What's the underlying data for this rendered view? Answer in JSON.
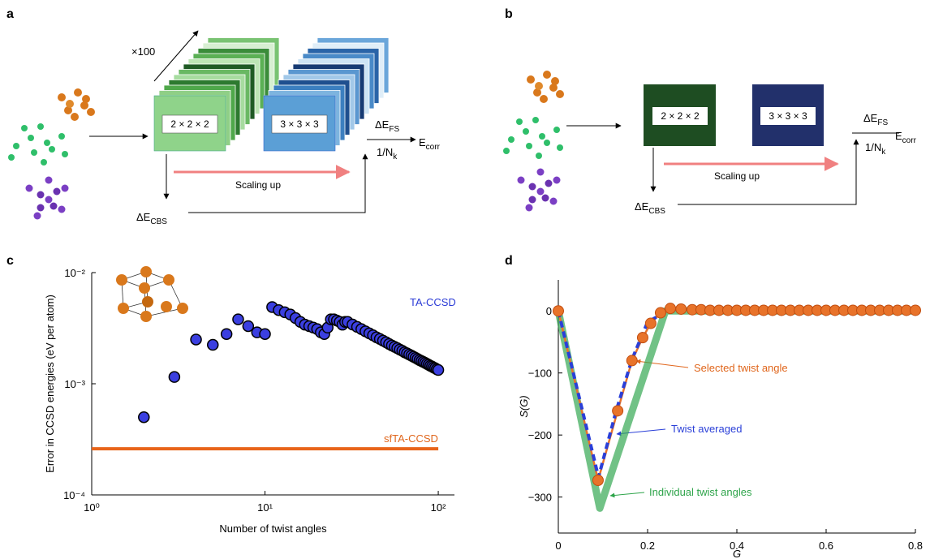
{
  "diagrams": [
    {
      "label": "a",
      "multiplier": "×100",
      "cells": [
        "2 × 2 × 2",
        "3 × 3 × 3"
      ],
      "arrow_label": "Scaling up",
      "cbs": {
        "main": "ΔE",
        "sub": "CBS"
      },
      "fs": {
        "main": "ΔE",
        "sub": "FS"
      },
      "nk": {
        "main": "1/N",
        "sub": "k"
      },
      "result": {
        "main": "E",
        "sub": "corr"
      }
    },
    {
      "label": "b",
      "cells": [
        "2 × 2 × 2",
        "3 × 3 × 3"
      ],
      "arrow_label": "Scaling up",
      "cbs": {
        "main": "ΔE",
        "sub": "CBS"
      },
      "fs": {
        "main": "ΔE",
        "sub": "FS"
      },
      "nk": {
        "main": "1/N",
        "sub": "k"
      },
      "result": {
        "main": "E",
        "sub": "corr"
      }
    }
  ],
  "chart_data": [
    {
      "type": "scatter",
      "panel": "c",
      "xlabel": "Number of twist angles",
      "ylabel": "Error in CCSD energies (eV per atom)",
      "xscale": "log",
      "yscale": "log",
      "xlim": [
        1,
        124
      ],
      "ylim": [
        0.0001,
        0.01
      ],
      "xticks": [
        {
          "value": 1,
          "label": "10⁰"
        },
        {
          "value": 10,
          "label": "10¹"
        },
        {
          "value": 100,
          "label": "10²"
        }
      ],
      "yticks": [
        {
          "value": 0.0001,
          "label": "10⁻⁴"
        },
        {
          "value": 0.001,
          "label": "10⁻³"
        },
        {
          "value": 0.01,
          "label": "10⁻²"
        }
      ],
      "series": [
        {
          "name": "TA-CCSD",
          "style": "markers",
          "color": "#3b3fe0",
          "x": [
            2,
            3,
            4,
            5,
            6,
            7,
            8,
            9,
            10,
            11,
            12,
            13,
            14,
            15,
            16,
            17,
            18,
            19,
            20,
            21,
            22,
            23,
            24,
            25,
            26,
            27,
            28,
            29,
            30,
            32,
            34,
            36,
            38,
            40,
            42,
            44,
            46,
            48,
            50,
            52,
            54,
            56,
            58,
            60,
            62,
            64,
            66,
            68,
            70,
            72,
            74,
            76,
            78,
            80,
            82,
            84,
            86,
            88,
            90,
            92,
            94,
            96,
            98,
            100
          ],
          "values": [
            0.0005,
            0.00115,
            0.0025,
            0.00224,
            0.0028,
            0.0038,
            0.0033,
            0.0029,
            0.0028,
            0.0049,
            0.0046,
            0.0044,
            0.0042,
            0.0039,
            0.0036,
            0.0034,
            0.0033,
            0.0032,
            0.0031,
            0.0029,
            0.0028,
            0.0032,
            0.0038,
            0.0038,
            0.0037,
            0.0036,
            0.0034,
            0.0036,
            0.0036,
            0.00341,
            0.00325,
            0.0031,
            0.00296,
            0.00284,
            0.00273,
            0.00262,
            0.00253,
            0.00244,
            0.00236,
            0.00228,
            0.00221,
            0.00215,
            0.00209,
            0.00203,
            0.00198,
            0.00192,
            0.00188,
            0.00183,
            0.00179,
            0.00175,
            0.00171,
            0.00167,
            0.00163,
            0.0016,
            0.00157,
            0.00154,
            0.00151,
            0.00148,
            0.00145,
            0.00143,
            0.0014,
            0.00138,
            0.00135,
            0.00133
          ]
        },
        {
          "name": "sfTA-CCSD",
          "style": "line",
          "color": "#e8641a",
          "x": [
            1,
            100
          ],
          "values": [
            0.00026,
            0.00026
          ]
        }
      ]
    },
    {
      "type": "line",
      "panel": "d",
      "xlabel": "G",
      "ylabel": "S(G)",
      "xlim": [
        0,
        0.8
      ],
      "ylim": [
        -358,
        50
      ],
      "xticks": [
        0,
        0.2,
        0.4,
        0.6,
        0.8
      ],
      "yticks": [
        {
          "value": -300,
          "label": "−300"
        },
        {
          "value": -200,
          "label": "−200"
        },
        {
          "value": -100,
          "label": "−100"
        },
        0
      ],
      "series": [
        {
          "name": "Individual twist angles",
          "style": "band",
          "color": "#34a853",
          "x": [
            0,
            0.093,
            0.24,
            0.8
          ],
          "values": [
            0,
            -318,
            0,
            0
          ]
        },
        {
          "name": "Selected twist angle",
          "style": "line-markers",
          "color": "#e8732a",
          "x": [
            0,
            0.089,
            0.133,
            0.165,
            0.189,
            0.207,
            0.229,
            0.251,
            0.275,
            0.3,
            0.32,
            0.34,
            0.36,
            0.38,
            0.4,
            0.42,
            0.44,
            0.46,
            0.48,
            0.5,
            0.52,
            0.54,
            0.56,
            0.58,
            0.6,
            0.62,
            0.64,
            0.66,
            0.68,
            0.7,
            0.72,
            0.74,
            0.76,
            0.78,
            0.8
          ],
          "values": [
            0,
            -273,
            -161,
            -80,
            -43,
            -20,
            -3,
            4,
            3,
            2,
            2,
            1,
            1,
            1,
            1,
            1,
            1,
            1,
            1,
            1,
            1,
            1,
            1,
            1,
            1,
            1,
            1,
            1,
            1,
            1,
            1,
            1,
            1,
            1,
            1
          ]
        },
        {
          "name": "Twist averaged",
          "style": "dashed",
          "color": "#2a3fd8",
          "x": [
            0,
            0.09,
            0.13,
            0.165,
            0.2,
            0.25,
            0.8
          ],
          "values": [
            0,
            -268,
            -160,
            -78,
            -18,
            2,
            0
          ]
        }
      ]
    }
  ]
}
